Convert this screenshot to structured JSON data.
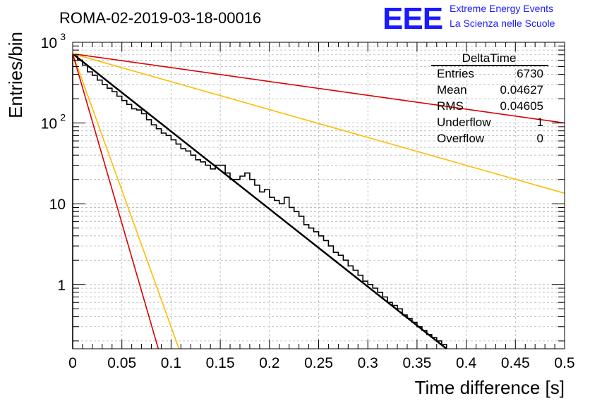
{
  "header": {
    "run_title": "ROMA-02-2019-03-18-00016",
    "logo_text": "EEE",
    "logo_line1": "Extreme Energy Events",
    "logo_line2": "La Scienza nelle Scuole",
    "logo_color": "#1a1aff"
  },
  "stats_box": {
    "title": "DeltaTime",
    "rows": [
      {
        "label": "Entries",
        "value": "6730"
      },
      {
        "label": "Mean",
        "value": "0.04627"
      },
      {
        "label": "RMS",
        "value": "0.04605"
      },
      {
        "label": "Underflow",
        "value": "1"
      },
      {
        "label": "Overflow",
        "value": "0"
      }
    ]
  },
  "chart_data": {
    "type": "histogram",
    "title": "ROMA-02-2019-03-18-00016",
    "xlabel": "Time difference [s]",
    "ylabel": "Entries/bin",
    "xlim": [
      0,
      0.5
    ],
    "ylim": [
      0.16,
      1000
    ],
    "yscale": "log",
    "grid": true,
    "x_ticks": [
      "0",
      "0.05",
      "0.1",
      "0.15",
      "0.2",
      "0.25",
      "0.3",
      "0.35",
      "0.4",
      "0.45",
      "0.5"
    ],
    "x_tick_values": [
      0,
      0.05,
      0.1,
      0.15,
      0.2,
      0.25,
      0.3,
      0.35,
      0.4,
      0.45,
      0.5
    ],
    "y_ticks": [
      {
        "value": 1000,
        "base": "10",
        "exp": "3"
      },
      {
        "value": 100,
        "base": "10",
        "exp": "2"
      },
      {
        "value": 10,
        "base": "10",
        "exp": ""
      },
      {
        "value": 1,
        "base": "1",
        "exp": ""
      }
    ],
    "bin_width": 0.005,
    "histogram": {
      "name": "DeltaTime",
      "color": "#000000",
      "bins": [
        [
          0.0,
          690
        ],
        [
          0.005,
          600
        ],
        [
          0.01,
          520
        ],
        [
          0.015,
          430
        ],
        [
          0.02,
          390
        ],
        [
          0.025,
          340
        ],
        [
          0.03,
          300
        ],
        [
          0.035,
          270
        ],
        [
          0.04,
          245
        ],
        [
          0.045,
          215
        ],
        [
          0.05,
          190
        ],
        [
          0.055,
          170
        ],
        [
          0.06,
          150
        ],
        [
          0.065,
          145
        ],
        [
          0.07,
          130
        ],
        [
          0.075,
          110
        ],
        [
          0.08,
          95
        ],
        [
          0.085,
          85
        ],
        [
          0.09,
          75
        ],
        [
          0.095,
          70
        ],
        [
          0.1,
          62
        ],
        [
          0.105,
          55
        ],
        [
          0.11,
          48
        ],
        [
          0.115,
          45
        ],
        [
          0.12,
          40
        ],
        [
          0.125,
          35
        ],
        [
          0.13,
          33
        ],
        [
          0.135,
          30
        ],
        [
          0.14,
          27
        ],
        [
          0.145,
          30
        ],
        [
          0.15,
          30
        ],
        [
          0.155,
          24
        ],
        [
          0.16,
          20
        ],
        [
          0.165,
          20
        ],
        [
          0.17,
          22
        ],
        [
          0.175,
          24
        ],
        [
          0.18,
          20
        ],
        [
          0.185,
          17
        ],
        [
          0.19,
          14
        ],
        [
          0.195,
          15
        ],
        [
          0.2,
          12
        ],
        [
          0.205,
          11
        ],
        [
          0.21,
          10
        ],
        [
          0.215,
          12
        ],
        [
          0.22,
          9
        ],
        [
          0.225,
          8
        ],
        [
          0.23,
          7
        ],
        [
          0.235,
          5.5
        ],
        [
          0.24,
          5
        ],
        [
          0.245,
          4.5
        ],
        [
          0.25,
          4
        ],
        [
          0.255,
          3.5
        ],
        [
          0.26,
          3
        ],
        [
          0.265,
          2.5
        ],
        [
          0.27,
          2.3
        ],
        [
          0.275,
          2
        ],
        [
          0.28,
          1.7
        ],
        [
          0.285,
          1.5
        ],
        [
          0.29,
          1.3
        ],
        [
          0.295,
          1.1
        ],
        [
          0.3,
          1
        ],
        [
          0.305,
          0.9
        ],
        [
          0.31,
          0.8
        ],
        [
          0.315,
          0.7
        ],
        [
          0.32,
          0.6
        ],
        [
          0.325,
          0.55
        ],
        [
          0.33,
          0.5
        ],
        [
          0.335,
          0.42
        ],
        [
          0.34,
          0.38
        ],
        [
          0.345,
          0.34
        ],
        [
          0.35,
          0.3
        ],
        [
          0.355,
          0.27
        ],
        [
          0.36,
          0.24
        ],
        [
          0.365,
          0.22
        ],
        [
          0.37,
          0.2
        ],
        [
          0.375,
          0.18
        ]
      ]
    },
    "series": [
      {
        "name": "exponential fit",
        "color": "#000000",
        "width": 2.5,
        "x": [
          0,
          0.38
        ],
        "y": [
          720,
          0.16
        ]
      },
      {
        "name": "red envelope upper",
        "color": "#dd0000",
        "width": 1.6,
        "x": [
          0,
          0.5
        ],
        "y": [
          720,
          100
        ]
      },
      {
        "name": "yellow envelope upper",
        "color": "#ffbb00",
        "width": 1.6,
        "x": [
          0,
          0.5
        ],
        "y": [
          720,
          13.5
        ]
      },
      {
        "name": "yellow envelope lower",
        "color": "#ffbb00",
        "width": 1.6,
        "x": [
          0,
          0.108
        ],
        "y": [
          720,
          0.16
        ]
      },
      {
        "name": "red envelope lower",
        "color": "#dd0000",
        "width": 1.6,
        "x": [
          0,
          0.087
        ],
        "y": [
          720,
          0.16
        ]
      }
    ]
  }
}
